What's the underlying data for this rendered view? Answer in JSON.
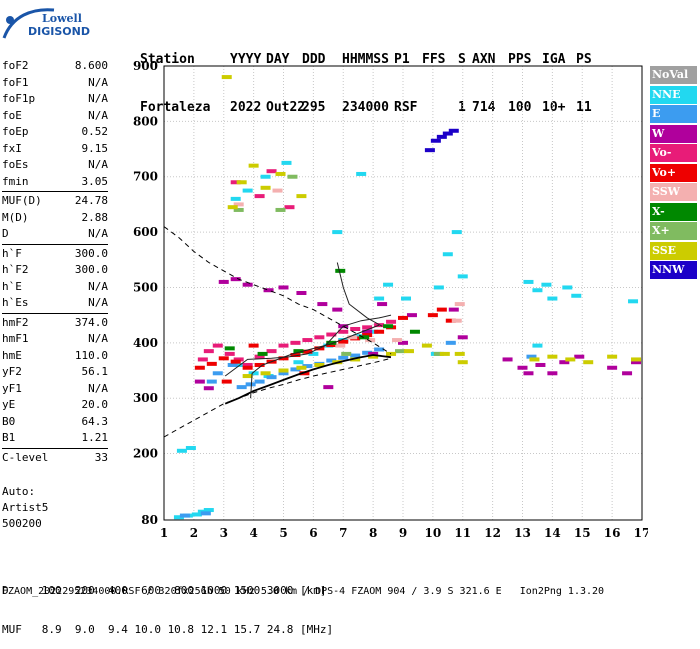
{
  "logo": {
    "line1": "Lowell",
    "line2": "DIGISONDE"
  },
  "header": {
    "labels": [
      "Station",
      "YYYY",
      "DAY",
      "DDD",
      "HHMMSS",
      "P1",
      "FFS",
      "S",
      "AXN",
      "PPS",
      "IGA",
      "PS"
    ],
    "values": [
      "Fortaleza",
      "2022",
      "Out22",
      "295",
      "234000",
      "RSF",
      "",
      "1",
      "714",
      "100",
      "10+",
      "11"
    ]
  },
  "params": [
    [
      {
        "k": "foF2",
        "v": "8.600"
      },
      {
        "k": "foF1",
        "v": "N/A"
      },
      {
        "k": "foF1p",
        "v": "N/A"
      },
      {
        "k": "foE",
        "v": "N/A"
      },
      {
        "k": "foEp",
        "v": "0.52"
      },
      {
        "k": "fxI",
        "v": "9.15"
      },
      {
        "k": "foEs",
        "v": "N/A"
      },
      {
        "k": "fmin",
        "v": "3.05"
      }
    ],
    [
      {
        "k": "MUF(D)",
        "v": "24.78"
      },
      {
        "k": "M(D)",
        "v": "2.88"
      },
      {
        "k": "D",
        "v": "N/A"
      }
    ],
    [
      {
        "k": "h`F",
        "v": "300.0"
      },
      {
        "k": "h`F2",
        "v": "300.0"
      },
      {
        "k": "h`E",
        "v": "N/A"
      },
      {
        "k": "h`Es",
        "v": "N/A"
      }
    ],
    [
      {
        "k": "hmF2",
        "v": "374.0"
      },
      {
        "k": "hmF1",
        "v": "N/A"
      },
      {
        "k": "hmE",
        "v": "110.0"
      },
      {
        "k": "yF2",
        "v": "56.1"
      },
      {
        "k": "yF1",
        "v": "N/A"
      },
      {
        "k": "yE",
        "v": "20.0"
      },
      {
        "k": "B0",
        "v": "64.3"
      },
      {
        "k": "B1",
        "v": "1.21"
      }
    ],
    [
      {
        "k": "C-level",
        "v": "33"
      }
    ]
  ],
  "auto": {
    "line1": "Auto:",
    "line2": "Artist5",
    "line3": "500200"
  },
  "legend": [
    {
      "label": "NoVal",
      "color": "#a0a0a0"
    },
    {
      "label": "NNE",
      "color": "#22d8f0"
    },
    {
      "label": "E",
      "color": "#3c9cf0"
    },
    {
      "label": "W",
      "color": "#b0009c"
    },
    {
      "label": "Vo-",
      "color": "#e81c78"
    },
    {
      "label": "Vo+",
      "color": "#ee0000"
    },
    {
      "label": "SSW",
      "color": "#f4b0b0"
    },
    {
      "label": "X-",
      "color": "#008800"
    },
    {
      "label": "X+",
      "color": "#80bb60"
    },
    {
      "label": "SSE",
      "color": "#cccc00"
    },
    {
      "label": "NNW",
      "color": "#1c00c8"
    }
  ],
  "footer": {
    "d_line": "D     100  200  400  600  800 1000 1500 3000 [km]",
    "muf_line": "MUF   8.9  9.0  9.4 10.0 10.8 12.1 15.7 24.8 [MHz]",
    "file_line": "FZAOM_2022295234000.RSF / 320fx256h 50 kHz 5.0 km / DPS-4 FZAOM 904 / 3.9 S 321.6 E   Ion2Png 1.3.20"
  },
  "chart_data": {
    "type": "scatter",
    "x_ticks": [
      1,
      2,
      3,
      4,
      5,
      6,
      7,
      8,
      9,
      10,
      11,
      12,
      13,
      14,
      15,
      16,
      17
    ],
    "y_ticks": [
      80,
      200,
      300,
      400,
      500,
      600,
      700,
      800,
      900
    ],
    "xlim": [
      1,
      17
    ],
    "ylim": [
      80,
      900
    ],
    "grid": true,
    "legend_position": "right",
    "series": [
      {
        "name": "NNE",
        "points": [
          [
            1.5,
            85
          ],
          [
            1.8,
            88
          ],
          [
            2.1,
            90
          ],
          [
            2.3,
            95
          ],
          [
            2.5,
            98
          ],
          [
            1.6,
            205
          ],
          [
            1.9,
            210
          ],
          [
            3.5,
            360
          ],
          [
            4,
            345
          ],
          [
            4.5,
            340
          ],
          [
            5,
            350
          ],
          [
            5.5,
            365
          ],
          [
            6,
            380
          ],
          [
            6.5,
            395
          ],
          [
            7,
            405
          ],
          [
            7.5,
            412
          ],
          [
            8,
            420
          ],
          [
            8.2,
            480
          ],
          [
            8.5,
            505
          ],
          [
            9.1,
            480
          ],
          [
            10.2,
            500
          ],
          [
            10.5,
            560
          ],
          [
            10.8,
            600
          ],
          [
            11,
            520
          ],
          [
            13.2,
            510
          ],
          [
            13.5,
            495
          ],
          [
            13.8,
            505
          ],
          [
            14,
            480
          ],
          [
            14.5,
            500
          ],
          [
            14.8,
            485
          ],
          [
            16.7,
            475
          ],
          [
            3.4,
            660
          ],
          [
            3.8,
            675
          ],
          [
            4.4,
            700
          ],
          [
            5.1,
            725
          ],
          [
            7.6,
            705
          ],
          [
            10.1,
            380
          ],
          [
            13.5,
            395
          ],
          [
            6.8,
            600
          ]
        ]
      },
      {
        "name": "E",
        "points": [
          [
            3.6,
            320
          ],
          [
            3.9,
            325
          ],
          [
            4.2,
            330
          ],
          [
            4.6,
            338
          ],
          [
            5,
            345
          ],
          [
            5.4,
            352
          ],
          [
            5.8,
            358
          ],
          [
            6.2,
            362
          ],
          [
            6.6,
            368
          ],
          [
            7,
            373
          ],
          [
            7.4,
            377
          ],
          [
            7.8,
            382
          ],
          [
            8.2,
            388
          ],
          [
            3.3,
            360
          ],
          [
            2.8,
            345
          ],
          [
            2.6,
            330
          ],
          [
            1.7,
            88
          ],
          [
            2.4,
            92
          ],
          [
            13.3,
            375
          ],
          [
            10.6,
            400
          ]
        ]
      },
      {
        "name": "W",
        "points": [
          [
            3,
            510
          ],
          [
            3.4,
            515
          ],
          [
            3.8,
            505
          ],
          [
            4.5,
            495
          ],
          [
            5,
            500
          ],
          [
            5.6,
            490
          ],
          [
            6.3,
            470
          ],
          [
            6.8,
            460
          ],
          [
            7,
            430
          ],
          [
            7.8,
            420
          ],
          [
            8.3,
            470
          ],
          [
            9.3,
            450
          ],
          [
            10.7,
            460
          ],
          [
            11,
            410
          ],
          [
            12.5,
            370
          ],
          [
            13,
            355
          ],
          [
            13.2,
            345
          ],
          [
            13.6,
            360
          ],
          [
            14,
            345
          ],
          [
            14.4,
            365
          ],
          [
            14.9,
            375
          ],
          [
            16,
            355
          ],
          [
            16.5,
            345
          ],
          [
            16.8,
            365
          ],
          [
            2.2,
            330
          ],
          [
            2.5,
            318
          ],
          [
            6.5,
            320
          ],
          [
            8,
            380
          ],
          [
            9,
            400
          ]
        ]
      },
      {
        "name": "Vo-",
        "points": [
          [
            2.3,
            370
          ],
          [
            2.5,
            385
          ],
          [
            2.8,
            395
          ],
          [
            3.2,
            380
          ],
          [
            3.5,
            370
          ],
          [
            3.8,
            360
          ],
          [
            4.2,
            375
          ],
          [
            4.6,
            385
          ],
          [
            5,
            395
          ],
          [
            5.4,
            400
          ],
          [
            5.8,
            405
          ],
          [
            6.2,
            410
          ],
          [
            6.6,
            415
          ],
          [
            7,
            420
          ],
          [
            7.4,
            425
          ],
          [
            7.8,
            428
          ],
          [
            8.2,
            432
          ],
          [
            8.6,
            438
          ],
          [
            3.4,
            690
          ],
          [
            4.2,
            665
          ],
          [
            4.6,
            710
          ],
          [
            5.2,
            645
          ]
        ]
      },
      {
        "name": "Vo+",
        "points": [
          [
            2.2,
            355
          ],
          [
            2.6,
            362
          ],
          [
            3,
            372
          ],
          [
            3.4,
            366
          ],
          [
            3.8,
            355
          ],
          [
            4.2,
            360
          ],
          [
            4.6,
            366
          ],
          [
            5,
            372
          ],
          [
            5.4,
            378
          ],
          [
            5.8,
            384
          ],
          [
            6.2,
            390
          ],
          [
            6.6,
            396
          ],
          [
            7,
            402
          ],
          [
            7.4,
            408
          ],
          [
            7.8,
            414
          ],
          [
            8.2,
            420
          ],
          [
            8.6,
            428
          ],
          [
            9,
            445
          ],
          [
            10,
            450
          ],
          [
            10.3,
            460
          ],
          [
            10.6,
            440
          ],
          [
            4,
            395
          ],
          [
            3.1,
            330
          ],
          [
            5.7,
            345
          ]
        ]
      },
      {
        "name": "SSW",
        "points": [
          [
            6.9,
            395
          ],
          [
            7.3,
            410
          ],
          [
            7.9,
            405
          ],
          [
            8.8,
            405
          ],
          [
            10.8,
            440
          ],
          [
            10.9,
            470
          ],
          [
            4.8,
            675
          ],
          [
            3.5,
            650
          ]
        ]
      },
      {
        "name": "X-",
        "points": [
          [
            3.2,
            390
          ],
          [
            4.3,
            380
          ],
          [
            5.5,
            385
          ],
          [
            6.6,
            400
          ],
          [
            7.7,
            410
          ],
          [
            8.5,
            430
          ],
          [
            9.4,
            420
          ],
          [
            6.9,
            530
          ]
        ]
      },
      {
        "name": "X+",
        "points": [
          [
            3.5,
            640
          ],
          [
            4.9,
            640
          ],
          [
            5.3,
            700
          ],
          [
            7.1,
            380
          ],
          [
            8.9,
            385
          ],
          [
            10.2,
            380
          ]
        ]
      },
      {
        "name": "SSE",
        "points": [
          [
            3.8,
            340
          ],
          [
            4.4,
            345
          ],
          [
            5,
            350
          ],
          [
            5.6,
            355
          ],
          [
            6.2,
            360
          ],
          [
            6.8,
            365
          ],
          [
            7.4,
            370
          ],
          [
            8,
            375
          ],
          [
            8.6,
            380
          ],
          [
            9.2,
            385
          ],
          [
            9.8,
            395
          ],
          [
            10.4,
            380
          ],
          [
            10.9,
            380
          ],
          [
            11,
            365
          ],
          [
            13.4,
            370
          ],
          [
            14,
            375
          ],
          [
            14.6,
            370
          ],
          [
            15.2,
            365
          ],
          [
            16,
            375
          ],
          [
            16.8,
            370
          ],
          [
            3.3,
            645
          ],
          [
            3.6,
            690
          ],
          [
            4,
            720
          ],
          [
            4.4,
            680
          ],
          [
            4.9,
            705
          ],
          [
            5.6,
            665
          ],
          [
            3.1,
            880
          ]
        ]
      },
      {
        "name": "NNW",
        "points": [
          [
            9.9,
            748
          ],
          [
            10.1,
            765
          ],
          [
            10.3,
            772
          ],
          [
            10.5,
            778
          ],
          [
            10.7,
            783
          ]
        ]
      }
    ],
    "lines": [
      {
        "name": "profile",
        "points": [
          [
            3.05,
            290
          ],
          [
            3.5,
            300
          ],
          [
            4,
            313
          ],
          [
            4.5,
            323
          ],
          [
            5,
            333
          ],
          [
            5.5,
            343
          ],
          [
            6,
            352
          ],
          [
            6.5,
            360
          ],
          [
            7,
            367
          ],
          [
            7.5,
            373
          ],
          [
            8,
            378
          ],
          [
            8.6,
            374
          ]
        ]
      },
      {
        "name": "dashed-upper",
        "points": [
          [
            1,
            610
          ],
          [
            1.5,
            590
          ],
          [
            2,
            565
          ],
          [
            2.5,
            545
          ],
          [
            3,
            530
          ],
          [
            3.5,
            515
          ],
          [
            4,
            505
          ],
          [
            4.5,
            495
          ],
          [
            5,
            485
          ],
          [
            5.5,
            470
          ],
          [
            6,
            460
          ],
          [
            6.5,
            445
          ],
          [
            7,
            430
          ],
          [
            7.5,
            415
          ],
          [
            8,
            400
          ],
          [
            8.6,
            380
          ]
        ]
      },
      {
        "name": "dashed-lower",
        "points": [
          [
            1,
            230
          ],
          [
            1.5,
            245
          ],
          [
            2,
            260
          ],
          [
            2.5,
            275
          ],
          [
            3,
            290
          ],
          [
            3.5,
            300
          ],
          [
            4,
            310
          ],
          [
            4.5,
            318
          ],
          [
            5,
            325
          ],
          [
            5.5,
            333
          ],
          [
            6,
            340
          ],
          [
            6.5,
            346
          ],
          [
            7,
            352
          ],
          [
            7.5,
            358
          ],
          [
            8,
            364
          ],
          [
            8.6,
            372
          ]
        ]
      },
      {
        "name": "trace-1",
        "points": [
          [
            3.05,
            340
          ],
          [
            3.8,
            370
          ],
          [
            4.6,
            372
          ],
          [
            5.2,
            375
          ],
          [
            5.8,
            380
          ],
          [
            6.4,
            395
          ],
          [
            7,
            430
          ],
          [
            7.6,
            440
          ],
          [
            8.2,
            445
          ],
          [
            8.6,
            450
          ]
        ]
      },
      {
        "name": "trace-2",
        "points": [
          [
            6.8,
            545
          ],
          [
            7,
            500
          ],
          [
            7.2,
            470
          ],
          [
            7.8,
            445
          ],
          [
            8.3,
            430
          ]
        ]
      },
      {
        "name": "trace-3",
        "points": [
          [
            3.9,
            300
          ],
          [
            3.95,
            345
          ],
          [
            4.3,
            360
          ],
          [
            5.3,
            380
          ],
          [
            6.6,
            398
          ],
          [
            7.4,
            415
          ],
          [
            8.2,
            432
          ]
        ]
      }
    ]
  }
}
